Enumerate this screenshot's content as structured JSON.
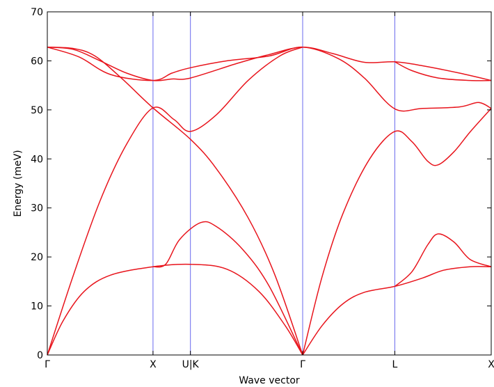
{
  "chart_data": {
    "type": "line",
    "title": "",
    "xlabel": "Wave vector",
    "ylabel": "Energy (meV)",
    "ylim": [
      0,
      70
    ],
    "yticks": [
      0,
      10,
      20,
      30,
      40,
      50,
      60,
      70
    ],
    "xticks": [
      {
        "label": "Γ",
        "x": 0
      },
      {
        "label": "X",
        "x": 1
      },
      {
        "label": "U|K",
        "x": 1.354
      },
      {
        "label": "Γ",
        "x": 2.416
      },
      {
        "label": "L",
        "x": 3.288
      },
      {
        "label": "X",
        "x": 4.2
      }
    ],
    "xlim": [
      0,
      4.2
    ],
    "grid": false,
    "colors": {
      "series": "#e8141c",
      "vlines": "#6a6aee",
      "axis": "#000000"
    },
    "series": [
      {
        "points": [
          [
            0,
            62.8
          ],
          [
            0.25,
            62.3
          ],
          [
            0.5,
            60.0
          ],
          [
            0.75,
            57.5
          ],
          [
            1,
            56.0
          ],
          [
            1.18,
            56.3
          ],
          [
            1.354,
            56.5
          ],
          [
            1.8,
            59.5
          ],
          [
            2.1,
            61.3
          ],
          [
            2.416,
            62.8
          ],
          [
            2.7,
            61.5
          ],
          [
            3.0,
            59.7
          ],
          [
            3.288,
            59.8
          ],
          [
            3.55,
            59.0
          ],
          [
            3.9,
            57.5
          ],
          [
            4.2,
            56.0
          ]
        ]
      },
      {
        "points": [
          [
            0,
            62.8
          ],
          [
            0.3,
            60.8
          ],
          [
            0.6,
            57.2
          ],
          [
            1,
            56.0
          ],
          [
            1.18,
            57.5
          ],
          [
            1.354,
            58.6
          ],
          [
            1.7,
            60.0
          ],
          [
            2.1,
            61.0
          ],
          [
            2.416,
            62.8
          ],
          [
            2.75,
            60.5
          ],
          [
            3.0,
            56.5
          ],
          [
            3.288,
            50.2
          ],
          [
            3.55,
            50.3
          ],
          [
            3.9,
            50.6
          ],
          [
            4.08,
            51.5
          ],
          [
            4.2,
            50.3
          ]
        ]
      },
      {
        "points": [
          [
            0,
            0
          ],
          [
            0.25,
            16.5
          ],
          [
            0.5,
            31.5
          ],
          [
            0.75,
            43.0
          ],
          [
            1,
            50.4
          ],
          [
            1.2,
            48.0
          ],
          [
            1.354,
            45.6
          ],
          [
            1.6,
            49.0
          ],
          [
            1.9,
            56.0
          ],
          [
            2.2,
            61.0
          ],
          [
            2.416,
            62.8
          ]
        ]
      },
      {
        "points": [
          [
            0,
            0
          ],
          [
            0.15,
            7.0
          ],
          [
            0.35,
            13.0
          ],
          [
            0.6,
            16.3
          ],
          [
            1,
            18.0
          ],
          [
            1.354,
            18.5
          ],
          [
            1.7,
            17.5
          ],
          [
            2.0,
            13.0
          ],
          [
            2.25,
            6.0
          ],
          [
            2.416,
            0
          ]
        ]
      },
      {
        "points": [
          [
            0,
            62.8
          ],
          [
            0.25,
            62.5
          ],
          [
            0.45,
            61.0
          ],
          [
            0.7,
            56.5
          ],
          [
            1,
            50.4
          ],
          [
            1.354,
            44.0
          ],
          [
            1.6,
            38.0
          ],
          [
            1.9,
            28.0
          ],
          [
            2.15,
            16.5
          ],
          [
            2.416,
            0
          ]
        ]
      },
      {
        "points": [
          [
            1,
            18.0
          ],
          [
            1.12,
            18.5
          ],
          [
            1.25,
            23.5
          ],
          [
            1.45,
            27.0
          ],
          [
            1.6,
            26.2
          ],
          [
            1.85,
            21.5
          ],
          [
            2.1,
            14.0
          ],
          [
            2.416,
            0
          ]
        ]
      },
      {
        "points": [
          [
            2.416,
            0
          ],
          [
            2.6,
            6.0
          ],
          [
            2.8,
            10.5
          ],
          [
            3.0,
            12.8
          ],
          [
            3.288,
            14.0
          ],
          [
            3.55,
            15.7
          ],
          [
            3.75,
            17.3
          ],
          [
            4.0,
            18.0
          ],
          [
            4.2,
            18.0
          ]
        ]
      },
      {
        "points": [
          [
            2.416,
            0
          ],
          [
            2.6,
            16.0
          ],
          [
            2.8,
            29.0
          ],
          [
            3.05,
            40.0
          ],
          [
            3.288,
            45.6
          ],
          [
            3.45,
            43.5
          ],
          [
            3.6,
            39.5
          ],
          [
            3.7,
            38.8
          ],
          [
            3.85,
            41.5
          ],
          [
            4.0,
            45.5
          ],
          [
            4.2,
            50.3
          ]
        ]
      },
      {
        "points": [
          [
            3.288,
            14.0
          ],
          [
            3.45,
            17.0
          ],
          [
            3.6,
            22.5
          ],
          [
            3.7,
            24.7
          ],
          [
            3.85,
            23.0
          ],
          [
            4.0,
            19.5
          ],
          [
            4.2,
            18.0
          ]
        ]
      },
      {
        "points": [
          [
            3.288,
            59.8
          ],
          [
            3.45,
            58.0
          ],
          [
            3.7,
            56.5
          ],
          [
            4.0,
            56.0
          ],
          [
            4.2,
            56.0
          ]
        ]
      }
    ]
  }
}
